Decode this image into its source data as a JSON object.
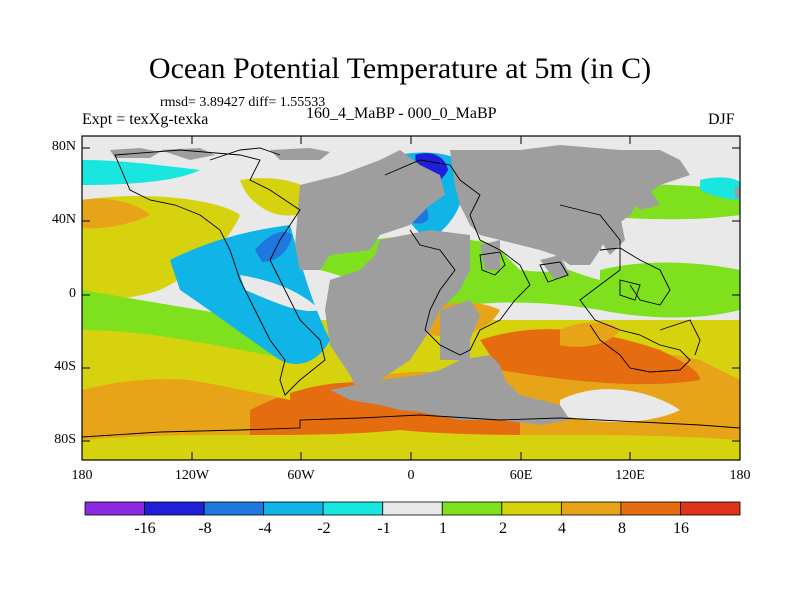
{
  "title": "Ocean Potential Temperature at 5m (in C)",
  "stats": "rmsd= 3.89427 diff= 1.55533",
  "left_label": "Expt = texXg-texka",
  "center_label": "160_4_MaBP - 000_0_MaBP",
  "right_label": "DJF",
  "lat_ticks": [
    "80N",
    "40N",
    "0",
    "40S",
    "80S"
  ],
  "lon_ticks": [
    "180",
    "120W",
    "60W",
    "0",
    "60E",
    "120E",
    "180"
  ],
  "colorbar": {
    "colors": [
      "#8a2be2",
      "#1f1fd9",
      "#1e78e0",
      "#11b4e6",
      "#1ae6e0",
      "#e9e9e9",
      "#7fe01e",
      "#d6d20e",
      "#e8a418",
      "#e66c10",
      "#e0341a"
    ],
    "labels": [
      "-16",
      "-8",
      "-4",
      "-2",
      "-1",
      "1",
      "2",
      "4",
      "8",
      "16"
    ]
  },
  "land_color": "#9e9e9e"
}
